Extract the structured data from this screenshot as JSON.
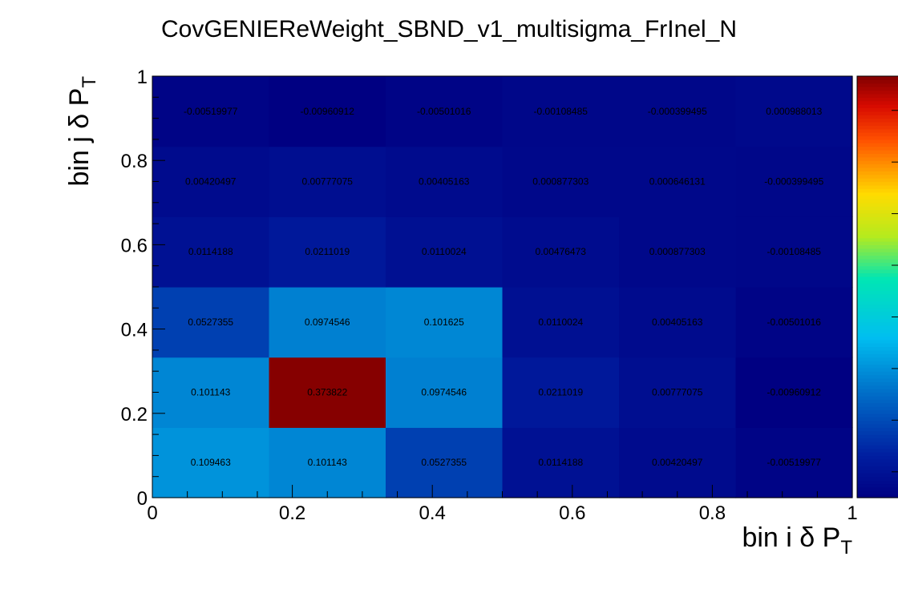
{
  "chart_data": {
    "type": "heatmap",
    "title": "CovGENIEReWeight_SBND_v1_multisigma_FrInel_N",
    "xlabel": "bin i δ P_T",
    "ylabel": "bin j δ P_T",
    "xlim": [
      0,
      1
    ],
    "ylim": [
      0,
      1
    ],
    "x_ticks": [
      "0",
      "0.2",
      "0.4",
      "0.6",
      "0.8",
      "1"
    ],
    "y_ticks": [
      "0",
      "0.2",
      "0.4",
      "0.6",
      "0.8",
      "1"
    ],
    "nx": 6,
    "ny": 6,
    "zlim": [
      -0.01,
      0.375
    ],
    "colormap": "rainbow",
    "rows": [
      [
        "0.109463",
        "0.101143",
        "0.0527355",
        "0.0114188",
        "0.00420497",
        "-0.00519977"
      ],
      [
        "0.101143",
        "0.373822",
        "0.0974546",
        "0.0211019",
        "0.00777075",
        "-0.00960912"
      ],
      [
        "0.0527355",
        "0.0974546",
        "0.101625",
        "0.0110024",
        "0.00405163",
        "-0.00501016"
      ],
      [
        "0.0114188",
        "0.0211019",
        "0.0110024",
        "0.00476473",
        "0.000877303",
        "-0.00108485"
      ],
      [
        "0.00420497",
        "0.00777075",
        "0.00405163",
        "0.000877303",
        "0.000646131",
        "-0.000399495"
      ],
      [
        "-0.00519977",
        "-0.00960912",
        "-0.00501016",
        "-0.00108485",
        "-0.000399495",
        "0.000988013"
      ]
    ],
    "grid": false,
    "colorbar": true
  }
}
